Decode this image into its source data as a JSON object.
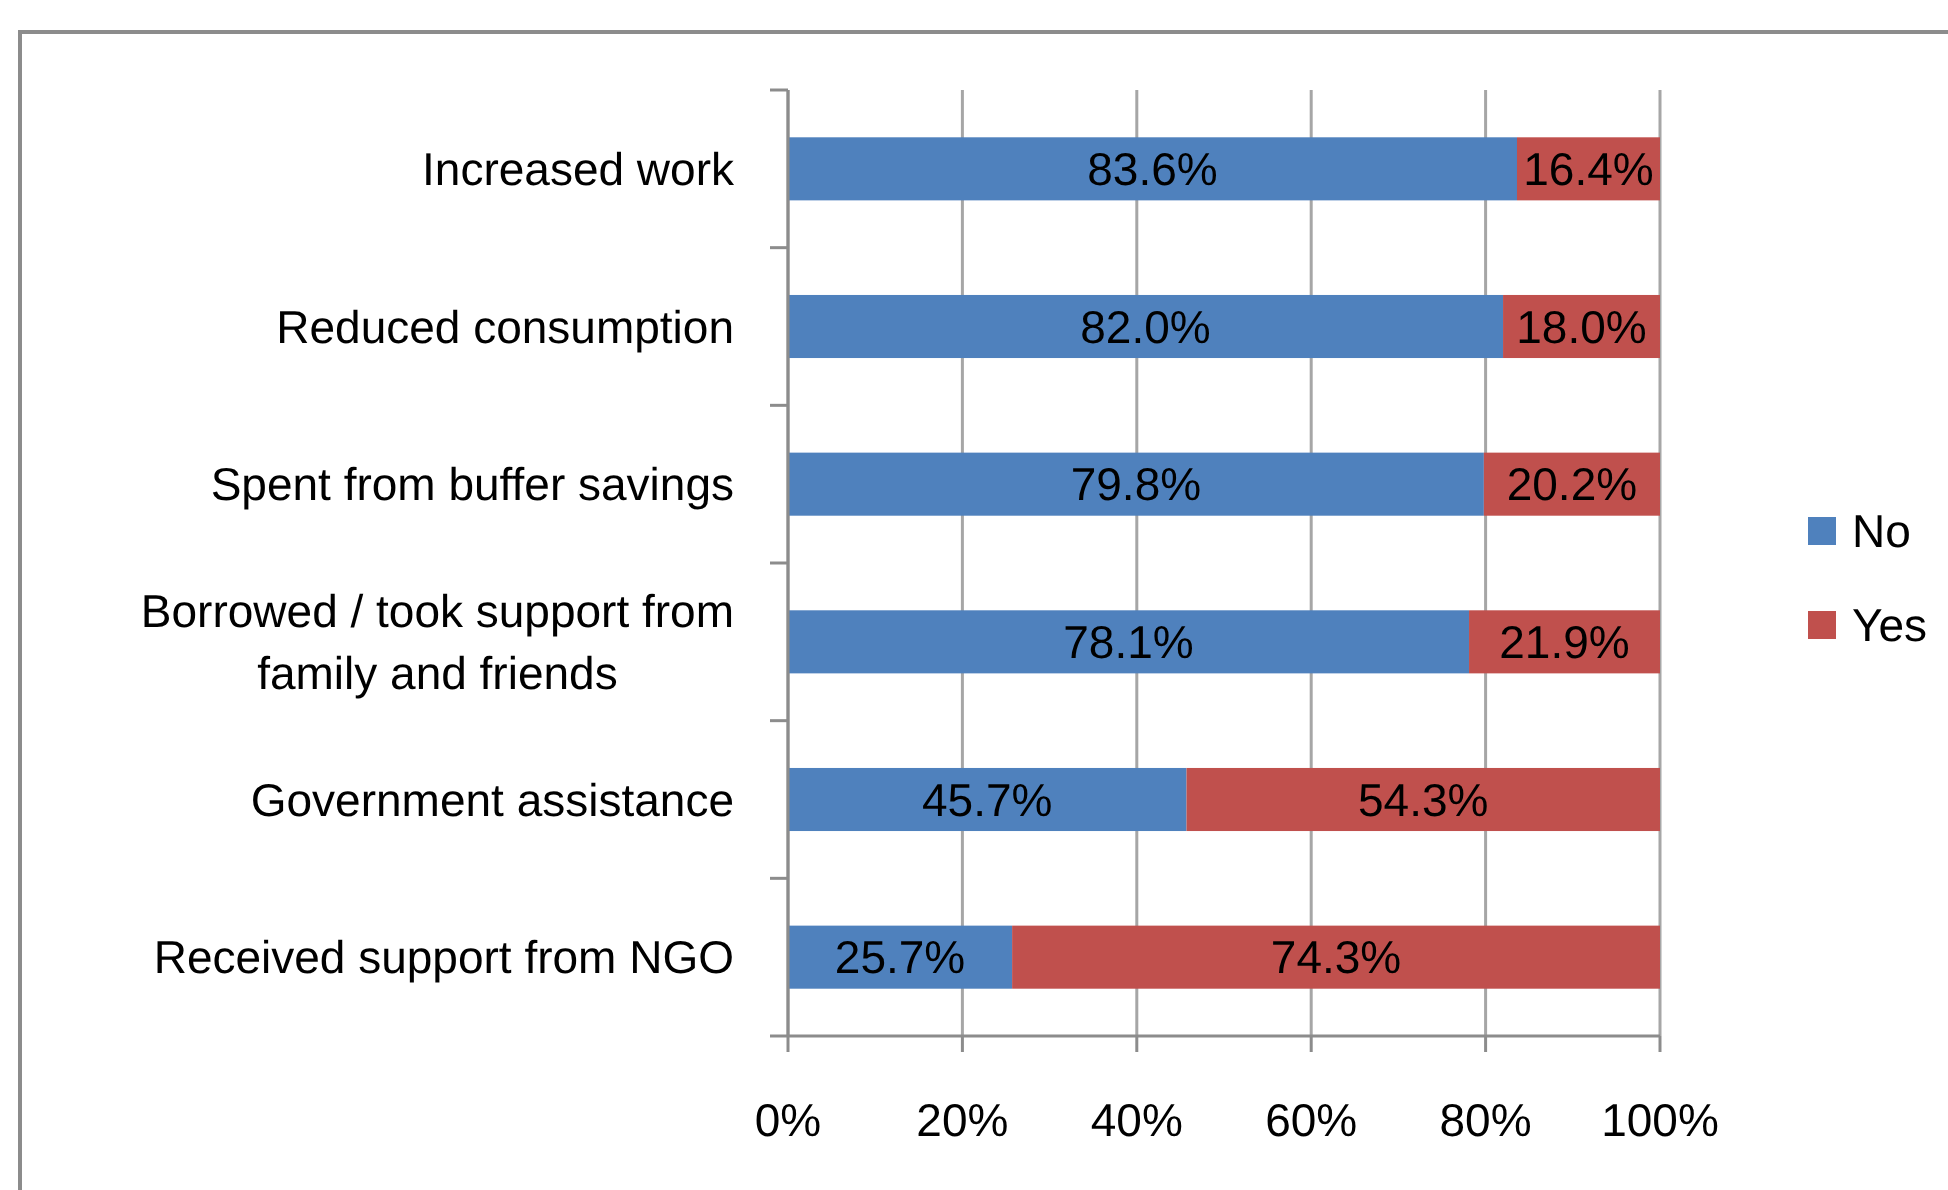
{
  "chart_data": {
    "type": "bar",
    "orientation": "horizontal",
    "stacked": true,
    "categories": [
      "Increased work",
      "Reduced consumption",
      "Spent from buffer savings",
      "Borrowed / took support from family and friends",
      "Government assistance",
      "Received support from NGO"
    ],
    "series": [
      {
        "name": "No",
        "color": "#4f81bd",
        "values": [
          83.6,
          82.0,
          79.8,
          78.1,
          45.7,
          25.7
        ],
        "value_labels": [
          "83.6%",
          "82.0%",
          "79.8%",
          "78.1%",
          "45.7%",
          "25.7%"
        ]
      },
      {
        "name": "Yes",
        "color": "#c0504d",
        "values": [
          16.4,
          18.0,
          20.2,
          21.9,
          54.3,
          74.3
        ],
        "value_labels": [
          "16.4%",
          "18.0%",
          "20.2%",
          "21.9%",
          "54.3%",
          "74.3%"
        ]
      }
    ],
    "xlim": [
      0,
      100
    ],
    "xticks": [
      {
        "value": 0,
        "label": "0%"
      },
      {
        "value": 20,
        "label": "20%"
      },
      {
        "value": 40,
        "label": "40%"
      },
      {
        "value": 60,
        "label": "60%"
      },
      {
        "value": 80,
        "label": "80%"
      },
      {
        "value": 100,
        "label": "100%"
      }
    ],
    "grid": "x",
    "legend": "right"
  }
}
